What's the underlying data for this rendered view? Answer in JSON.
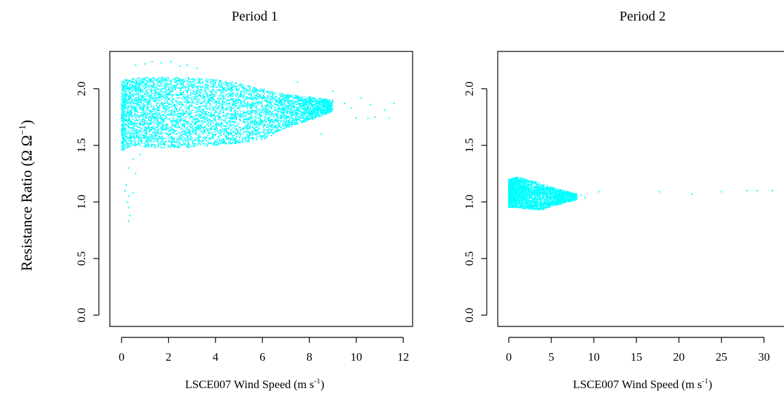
{
  "figure": {
    "ylabel_prefix": "Resistance Ratio (Ω Ω",
    "ylabel_sup": "−1",
    "ylabel_suffix": ")"
  },
  "colors": {
    "points": "#00ffff",
    "axes": "#000000"
  },
  "chart_data": [
    {
      "type": "scatter",
      "title": "Period 1",
      "xlabel_prefix": "LSCE007 Wind Speed (m s",
      "xlabel_sup": "-1",
      "xlabel_suffix": ")",
      "xlim": [
        -0.5,
        12.4
      ],
      "ylim": [
        -0.1,
        2.33
      ],
      "xticks": [
        0,
        2,
        4,
        6,
        8,
        10,
        12
      ],
      "yticks": [
        0.0,
        0.5,
        1.0,
        1.5,
        2.0
      ],
      "ytick_labels": [
        "0.0",
        "0.5",
        "1.0",
        "1.5",
        "2.0"
      ],
      "grid": false,
      "point_color": "#00ffff",
      "dense_envelope": [
        {
          "x": 0.0,
          "ymin": 1.45,
          "ymax": 2.07
        },
        {
          "x": 0.5,
          "ymin": 1.5,
          "ymax": 2.1
        },
        {
          "x": 1.0,
          "ymin": 1.48,
          "ymax": 2.1
        },
        {
          "x": 2.0,
          "ymin": 1.48,
          "ymax": 2.1
        },
        {
          "x": 3.0,
          "ymin": 1.48,
          "ymax": 2.1
        },
        {
          "x": 4.0,
          "ymin": 1.5,
          "ymax": 2.08
        },
        {
          "x": 5.0,
          "ymin": 1.52,
          "ymax": 2.05
        },
        {
          "x": 6.0,
          "ymin": 1.55,
          "ymax": 2.0
        },
        {
          "x": 7.0,
          "ymin": 1.65,
          "ymax": 1.95
        },
        {
          "x": 8.0,
          "ymin": 1.72,
          "ymax": 1.93
        },
        {
          "x": 9.0,
          "ymin": 1.8,
          "ymax": 1.9
        }
      ],
      "sparse_points": [
        {
          "x": 1.0,
          "y": 2.22
        },
        {
          "x": 1.3,
          "y": 2.24
        },
        {
          "x": 1.7,
          "y": 2.23
        },
        {
          "x": 2.1,
          "y": 2.24
        },
        {
          "x": 2.5,
          "y": 2.2
        },
        {
          "x": 0.6,
          "y": 2.21
        },
        {
          "x": 3.2,
          "y": 2.18
        },
        {
          "x": 2.8,
          "y": 2.21
        },
        {
          "x": 0.3,
          "y": 1.3
        },
        {
          "x": 0.2,
          "y": 1.15
        },
        {
          "x": 0.3,
          "y": 1.05
        },
        {
          "x": 0.25,
          "y": 1.0
        },
        {
          "x": 0.3,
          "y": 0.95
        },
        {
          "x": 0.35,
          "y": 0.88
        },
        {
          "x": 0.3,
          "y": 0.83
        },
        {
          "x": 0.15,
          "y": 1.1
        },
        {
          "x": 0.5,
          "y": 1.08
        },
        {
          "x": 0.6,
          "y": 1.25
        },
        {
          "x": 0.5,
          "y": 1.38
        },
        {
          "x": 0.8,
          "y": 1.42
        },
        {
          "x": 7.5,
          "y": 2.06
        },
        {
          "x": 8.5,
          "y": 1.6
        },
        {
          "x": 9.0,
          "y": 1.98
        },
        {
          "x": 9.5,
          "y": 1.87
        },
        {
          "x": 9.8,
          "y": 1.83
        },
        {
          "x": 10.2,
          "y": 1.92
        },
        {
          "x": 10.0,
          "y": 1.74
        },
        {
          "x": 10.5,
          "y": 1.74
        },
        {
          "x": 10.8,
          "y": 1.75
        },
        {
          "x": 11.2,
          "y": 1.81
        },
        {
          "x": 11.4,
          "y": 1.74
        },
        {
          "x": 11.6,
          "y": 1.87
        },
        {
          "x": 10.6,
          "y": 1.86
        }
      ]
    },
    {
      "type": "scatter",
      "title": "Period 2",
      "xlabel_prefix": "LSCE007 Wind Speed (m s",
      "xlabel_sup": "-1",
      "xlabel_suffix": ")",
      "xlim": [
        -1.3,
        33.0
      ],
      "ylim": [
        -0.1,
        2.33
      ],
      "xticks": [
        0,
        5,
        10,
        15,
        20,
        25,
        30
      ],
      "yticks": [
        0.0,
        0.5,
        1.0,
        1.5,
        2.0
      ],
      "ytick_labels": [
        "0.0",
        "0.5",
        "1.0",
        "1.5",
        "2.0"
      ],
      "grid": false,
      "point_color": "#00ffff",
      "dense_envelope": [
        {
          "x": 0.0,
          "ymin": 0.95,
          "ymax": 1.2
        },
        {
          "x": 1.0,
          "ymin": 0.95,
          "ymax": 1.22
        },
        {
          "x": 2.0,
          "ymin": 0.94,
          "ymax": 1.2
        },
        {
          "x": 3.0,
          "ymin": 0.93,
          "ymax": 1.18
        },
        {
          "x": 4.0,
          "ymin": 0.93,
          "ymax": 1.16
        },
        {
          "x": 5.0,
          "ymin": 0.96,
          "ymax": 1.13
        },
        {
          "x": 6.0,
          "ymin": 0.98,
          "ymax": 1.11
        },
        {
          "x": 7.0,
          "ymin": 1.0,
          "ymax": 1.09
        },
        {
          "x": 8.0,
          "ymin": 1.02,
          "ymax": 1.07
        }
      ],
      "sparse_points": [
        {
          "x": 8.5,
          "y": 1.06
        },
        {
          "x": 9.0,
          "y": 1.04
        },
        {
          "x": 10.6,
          "y": 1.09
        },
        {
          "x": 17.7,
          "y": 1.09
        },
        {
          "x": 21.5,
          "y": 1.07
        },
        {
          "x": 25.0,
          "y": 1.09
        },
        {
          "x": 28.0,
          "y": 1.1
        },
        {
          "x": 29.2,
          "y": 1.1
        },
        {
          "x": 31.0,
          "y": 1.1
        }
      ]
    }
  ]
}
